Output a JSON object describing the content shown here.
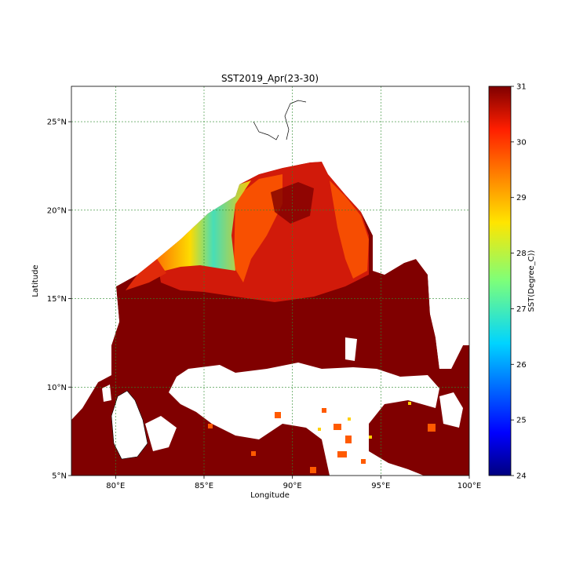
{
  "map": {
    "title": "SST2019_Apr(23-30)",
    "xlabel": "Longitude",
    "ylabel": "Latitude",
    "lon_range": [
      77.5,
      100
    ],
    "lat_range": [
      5,
      27
    ],
    "lon_ticks": [
      {
        "value": 80,
        "label": "80°E"
      },
      {
        "value": 85,
        "label": "85°E"
      },
      {
        "value": 90,
        "label": "90°E"
      },
      {
        "value": 95,
        "label": "95°E"
      },
      {
        "value": 100,
        "label": "100°E"
      }
    ],
    "lat_ticks": [
      {
        "value": 5,
        "label": "5°N"
      },
      {
        "value": 10,
        "label": "10°N"
      },
      {
        "value": 15,
        "label": "15°N"
      },
      {
        "value": 20,
        "label": "20°N"
      },
      {
        "value": 25,
        "label": "25°N"
      }
    ],
    "grid": true,
    "grid_color": "#2e8b2e"
  },
  "colorbar": {
    "label": "SST(Degree_C))",
    "range": [
      24,
      31
    ],
    "ticks": [
      "24",
      "25",
      "26",
      "27",
      "28",
      "29",
      "30",
      "31"
    ],
    "colormap": "jet"
  },
  "colors": {
    "land_missing": "#ffffff",
    "sst_warm": "#800000",
    "sst_hot": "#d11a0a",
    "sst_orange": "#ff5a00",
    "sst_yellow": "#ffd000",
    "sst_cyan": "#30e0c8",
    "coastline": "#000000"
  }
}
